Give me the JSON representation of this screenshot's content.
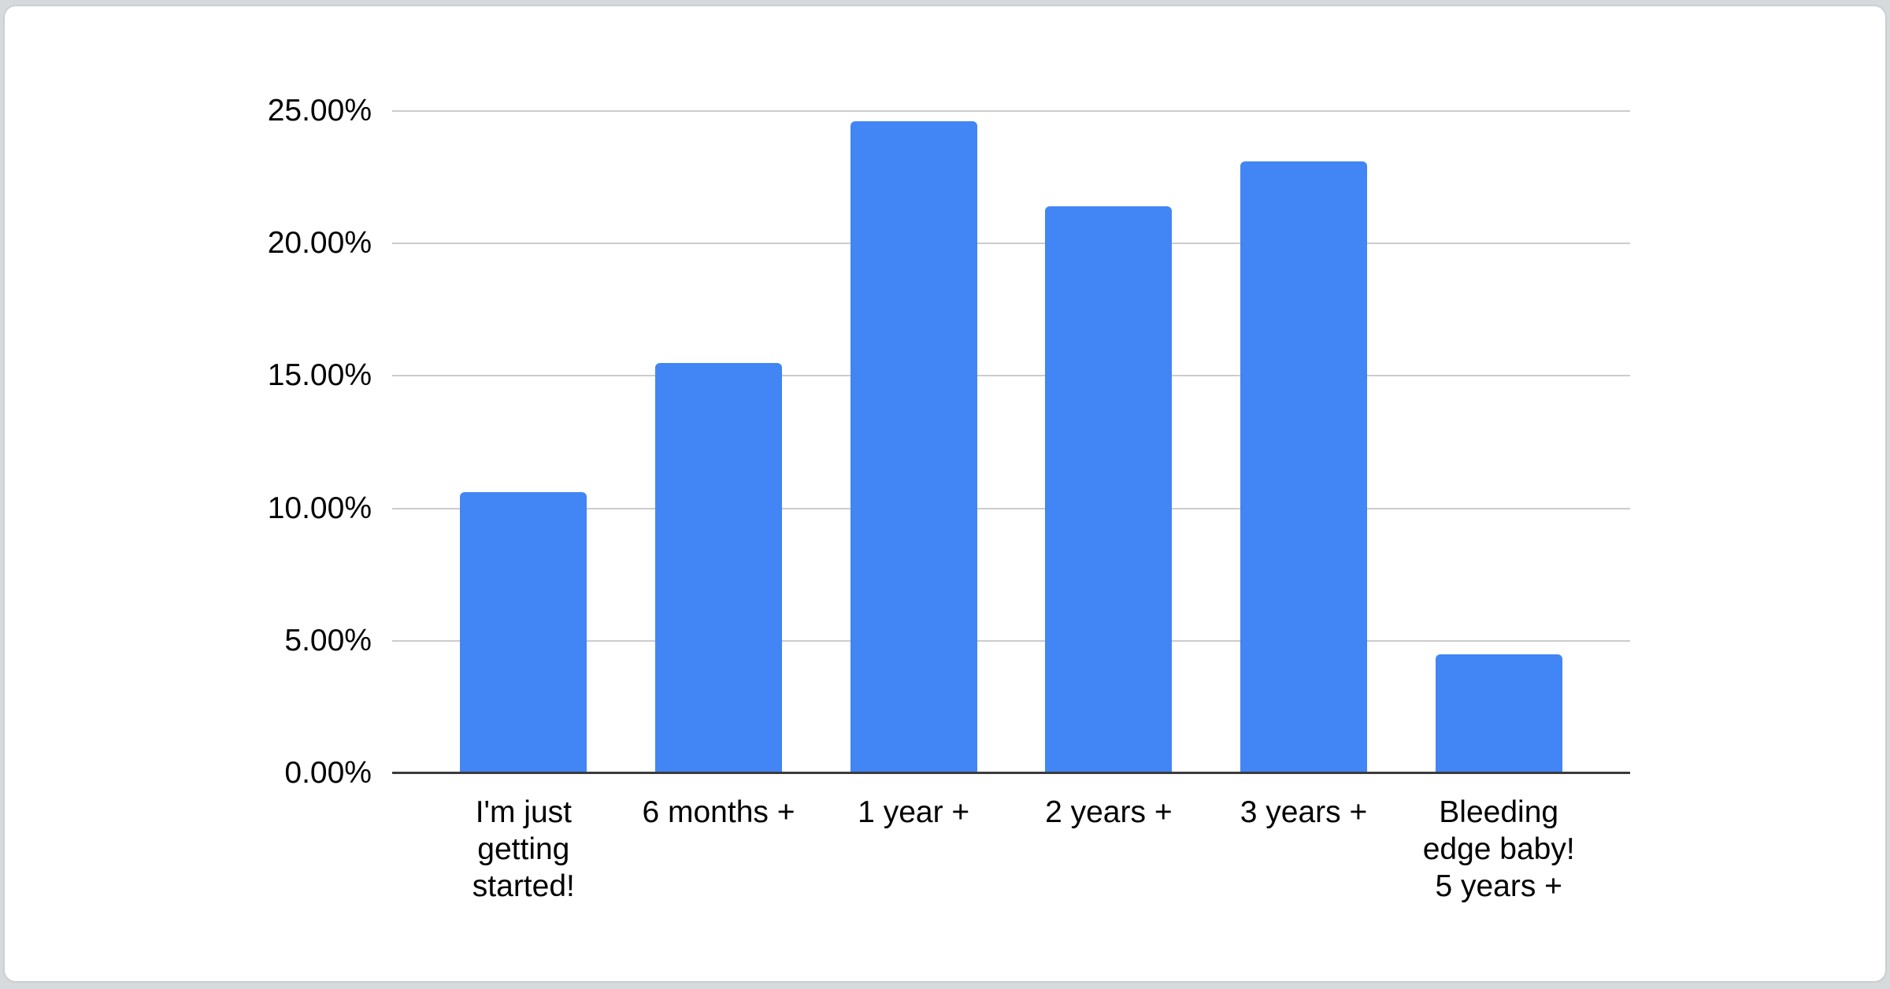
{
  "page": {
    "background_color": "#d7dadd",
    "card_background": "#ffffff",
    "card_border_color": "#cbced2"
  },
  "chart_data": {
    "type": "bar",
    "title": "",
    "xlabel": "",
    "ylabel": "",
    "categories": [
      "I'm just getting started!",
      "6 months +",
      "1 year +",
      "2 years +",
      "3 years +",
      "Bleeding edge baby! 5 years +"
    ],
    "display_labels": [
      "I'm just\ngetting\nstarted!",
      "6 months +",
      "1 year +",
      "2 years +",
      "3 years +",
      "Bleeding\nedge baby!\n5 years +"
    ],
    "values": [
      10.6,
      15.5,
      24.6,
      21.4,
      23.1,
      4.5
    ],
    "value_format": "percent",
    "ylim": [
      0,
      25
    ],
    "yticks": [
      {
        "value": 25,
        "label": "25.00%"
      },
      {
        "value": 20,
        "label": "20.00%"
      },
      {
        "value": 15,
        "label": "15.00%"
      },
      {
        "value": 10,
        "label": "10.00%"
      },
      {
        "value": 5,
        "label": "5.00%"
      },
      {
        "value": 0,
        "label": "0.00%"
      }
    ],
    "grid": true,
    "legend_position": "none",
    "bar_color": "#4285f4",
    "gridline_color": "#cccccc",
    "axis_line_color": "#3b3b3b",
    "text_color": "#000000"
  }
}
